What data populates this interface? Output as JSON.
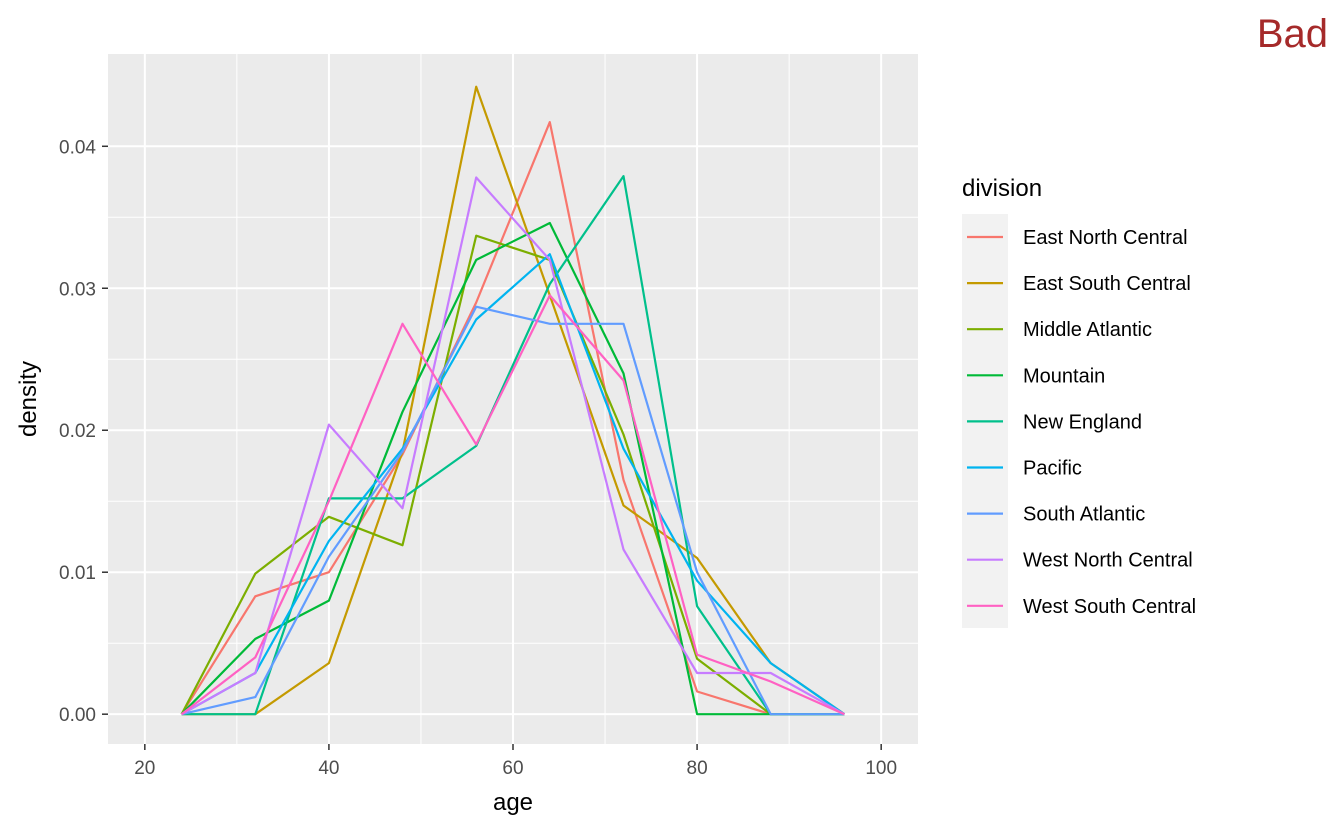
{
  "badge": {
    "text": "Bad",
    "color": "#A52A2A"
  },
  "chart_data": {
    "type": "line",
    "title": "",
    "xlabel": "age",
    "ylabel": "density",
    "xlim": [
      16,
      104
    ],
    "ylim": [
      -0.0021,
      0.0465
    ],
    "xticks": [
      20,
      40,
      60,
      80,
      100
    ],
    "xtick_labels": [
      "20",
      "40",
      "60",
      "80",
      "100"
    ],
    "yticks": [
      0,
      0.01,
      0.02,
      0.03,
      0.04
    ],
    "ytick_labels": [
      "0.00",
      "0.01",
      "0.02",
      "0.03",
      "0.04"
    ],
    "grid": true,
    "legend": {
      "title": "division",
      "position": "right"
    },
    "x": [
      24,
      32,
      40,
      48,
      56,
      64,
      72,
      80,
      88,
      96
    ],
    "series": [
      {
        "name": "East North Central",
        "color": "#F8766D",
        "values": [
          0,
          0.0083,
          0.01,
          0.0183,
          0.029,
          0.0417,
          0.0165,
          0.0016,
          0,
          0
        ]
      },
      {
        "name": "East South Central",
        "color": "#C49A00",
        "values": [
          0,
          0,
          0.0036,
          0.0185,
          0.0442,
          0.0295,
          0.0147,
          0.011,
          0.0036,
          0
        ]
      },
      {
        "name": "Middle Atlantic",
        "color": "#7CAE00",
        "values": [
          0,
          0.0099,
          0.0139,
          0.0119,
          0.0337,
          0.032,
          0.0197,
          0.0039,
          0,
          0
        ]
      },
      {
        "name": "Mountain",
        "color": "#00BA38",
        "values": [
          0,
          0.0053,
          0.008,
          0.0213,
          0.032,
          0.0346,
          0.024,
          0,
          0,
          0
        ]
      },
      {
        "name": "New England",
        "color": "#00C08B",
        "values": [
          0,
          0,
          0.0152,
          0.0152,
          0.0189,
          0.0303,
          0.0379,
          0.0076,
          0,
          0
        ]
      },
      {
        "name": "Pacific",
        "color": "#00B4F0",
        "values": [
          0,
          0.0029,
          0.0122,
          0.0187,
          0.0278,
          0.0324,
          0.0187,
          0.0094,
          0.0036,
          0
        ]
      },
      {
        "name": "South Atlantic",
        "color": "#619CFF",
        "values": [
          0,
          0.0012,
          0.0111,
          0.0185,
          0.0287,
          0.0275,
          0.0275,
          0.01,
          0,
          0
        ]
      },
      {
        "name": "West North Central",
        "color": "#C77CFF",
        "values": [
          0,
          0.0029,
          0.0204,
          0.0145,
          0.0378,
          0.032,
          0.0116,
          0.0029,
          0.0029,
          0
        ]
      },
      {
        "name": "West South Central",
        "color": "#FF61C3",
        "values": [
          0,
          0.004,
          0.015,
          0.0275,
          0.019,
          0.0295,
          0.0235,
          0.0042,
          0.0023,
          0
        ]
      }
    ]
  }
}
